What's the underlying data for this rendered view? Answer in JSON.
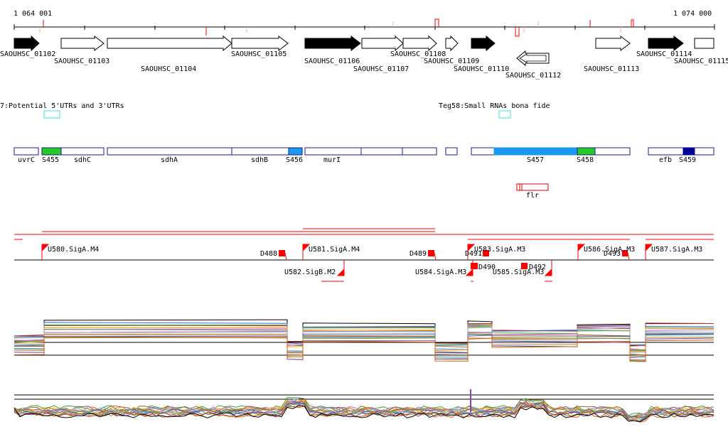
{
  "ruler": {
    "start_label": "1 064 001",
    "end_label": "1 074 000"
  },
  "colors": {
    "gene_fill_black": "#000000",
    "gene_fill_white": "#ffffff",
    "utr": "#33e6e6",
    "box_outline": "#1a1a99",
    "green": "#22cc22",
    "blue": "#1a99ee",
    "navy": "#000099",
    "red": "#ff0000",
    "trace_reference": "#000000"
  },
  "genes": [
    {
      "label": "SAOUHSC_01102",
      "fill": "black",
      "strand": "+"
    },
    {
      "label": "SAOUHSC_01103",
      "fill": "white",
      "strand": "+"
    },
    {
      "label": "SAOUHSC_01104",
      "fill": "white",
      "strand": "+"
    },
    {
      "label": "SAOUHSC_01105",
      "fill": "white",
      "strand": "+"
    },
    {
      "label": "SAOUHSC_01106",
      "fill": "black",
      "strand": "+"
    },
    {
      "label": "SAOUHSC_01107",
      "fill": "white",
      "strand": "+"
    },
    {
      "label": "SAOUHSC_01108",
      "fill": "white",
      "strand": "+"
    },
    {
      "label": "SAOUHSC_01109",
      "fill": "white",
      "strand": "+"
    },
    {
      "label": "SAOUHSC_01110",
      "fill": "black",
      "strand": "+"
    },
    {
      "label": "SAOUHSC_01112",
      "fill": "white",
      "strand": "-"
    },
    {
      "label": "SAOUHSC_01113",
      "fill": "white",
      "strand": "+"
    },
    {
      "label": "SAOUHSC_01114",
      "fill": "black",
      "strand": "+"
    },
    {
      "label": "SAOUHSC_01115",
      "fill": "white",
      "strand": "+"
    }
  ],
  "utr_tracks": [
    {
      "label": "7:Potential 5'UTRs and 3'UTRs"
    },
    {
      "label": "Teg58:Small RNAs bona fide"
    }
  ],
  "operon_labels": [
    "uvrC",
    "S455",
    "sdhC",
    "sdhA",
    "sdhB",
    "S456",
    "murI",
    "S457",
    "S458",
    "efb",
    "S459",
    "flr"
  ],
  "promoter_labels": [
    "U580.SigA.M4",
    "D488",
    "U581.SigA.M4",
    "D489",
    "D491",
    "U583.SigA.M3",
    "U586.SigA.M3",
    "D493",
    "U587.SigA.M3",
    "U582.SigB.M2",
    "U584.SigA.M3",
    "D490",
    "U585.SigA.M3",
    "D492"
  ]
}
